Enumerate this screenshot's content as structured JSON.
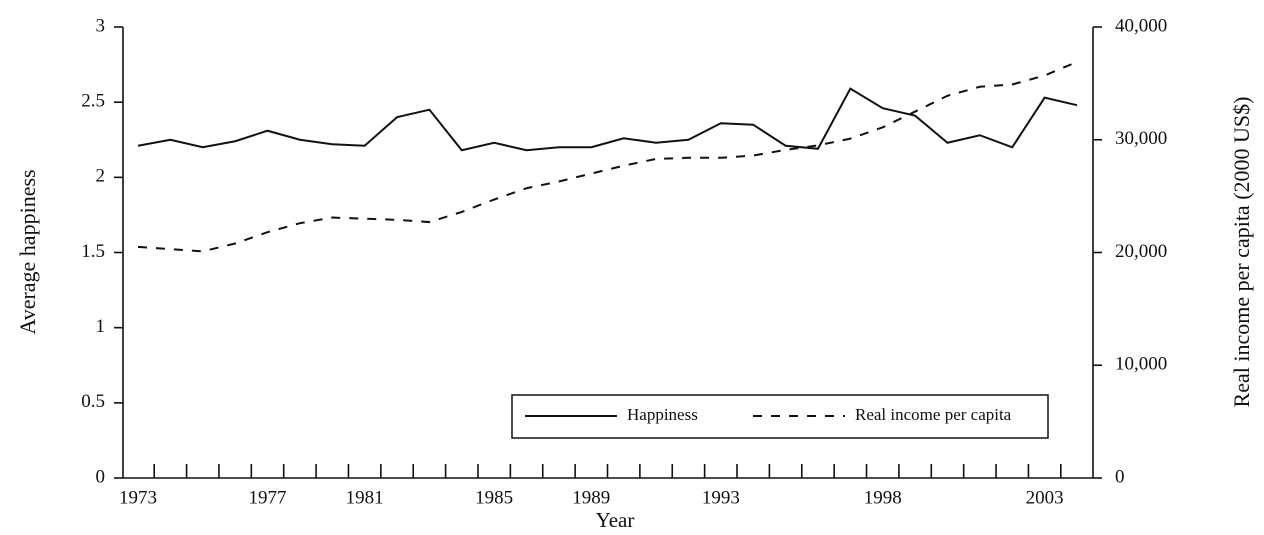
{
  "chart_data": {
    "type": "line",
    "x_label": "Year",
    "y_label": "Average happiness",
    "y2_label": "Real income per capita (2000 US$)",
    "categories": [
      "1973",
      null,
      null,
      null,
      "1977",
      null,
      null,
      "1981",
      null,
      null,
      null,
      "1985",
      null,
      null,
      "1989",
      null,
      null,
      null,
      "1993",
      null,
      null,
      null,
      null,
      "1998",
      null,
      null,
      null,
      null,
      "2003",
      null
    ],
    "series": [
      {
        "name": "Happiness",
        "color": "#111111",
        "dash": "solid",
        "values": [
          2.21,
          2.25,
          2.2,
          2.24,
          2.31,
          2.25,
          2.22,
          2.21,
          2.4,
          2.45,
          2.18,
          2.23,
          2.18,
          2.2,
          2.2,
          2.26,
          2.23,
          2.25,
          2.36,
          2.35,
          2.21,
          2.19,
          2.59,
          2.46,
          2.41,
          2.23,
          2.28,
          2.2,
          2.53,
          2.48
        ]
      },
      {
        "name": "Real income per capita",
        "color": "#111111",
        "dash": "dashed",
        "axis": "y2",
        "values": [
          20500,
          20300,
          20100,
          20800,
          21800,
          22600,
          23100,
          23000,
          22900,
          22700,
          23600,
          24700,
          25700,
          26300,
          27000,
          27700,
          28300,
          28400,
          28400,
          28600,
          29100,
          29500,
          30100,
          31100,
          32500,
          33900,
          34700,
          34900,
          35700,
          36900
        ]
      }
    ],
    "ylim": [
      0,
      3
    ],
    "yticks": [
      0,
      0.5,
      1,
      1.5,
      2,
      2.5,
      3
    ],
    "y2lim": [
      0,
      40000
    ],
    "y2ticks": [
      0,
      {
        "value": 10000,
        "label": "10,000"
      },
      {
        "value": 20000,
        "label": "20,000"
      },
      {
        "value": 30000,
        "label": "30,000"
      },
      {
        "value": 40000,
        "label": "40,000"
      }
    ],
    "legend": "lower right",
    "grid": false
  }
}
